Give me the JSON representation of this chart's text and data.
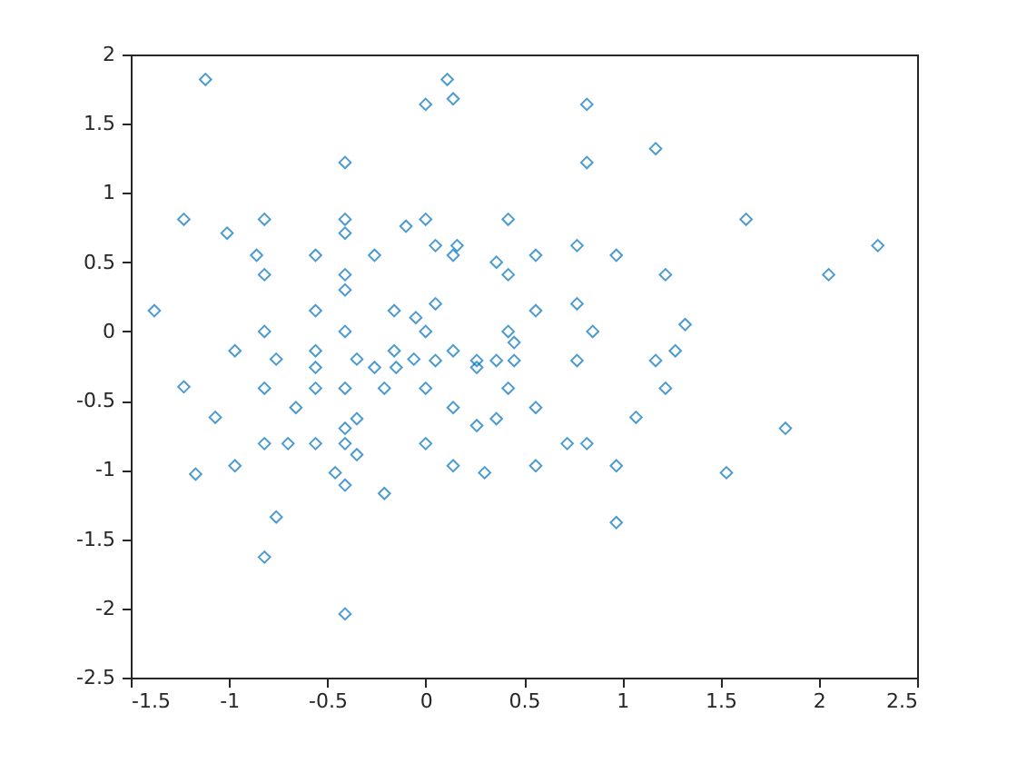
{
  "chart_data": {
    "type": "scatter",
    "marker": "diamond",
    "grid": false,
    "xlim": [
      -1.5,
      2.5
    ],
    "xticks": [
      -1.5,
      -1,
      -0.5,
      0,
      0.5,
      1,
      1.5,
      2,
      2.5
    ],
    "ylim": [
      -2.5,
      2
    ],
    "yticks": [
      -2.5,
      -2,
      -1.5,
      -1,
      -0.5,
      0,
      0.5,
      1,
      1.5,
      2
    ],
    "series": [
      {
        "color": "#0072bd",
        "x": [
          -1.38,
          -1.12,
          -1.23,
          -1.23,
          -1.17,
          -1.07,
          -1.01,
          -0.97,
          -0.97,
          -0.86,
          -0.82,
          -0.82,
          -0.82,
          -0.82,
          -0.82,
          -0.82,
          -0.76,
          -0.76,
          -0.7,
          -0.66,
          -0.56,
          -0.56,
          -0.56,
          -0.56,
          -0.56,
          -0.56,
          -0.41,
          -0.41,
          -0.41,
          -0.41,
          -0.41,
          -0.41,
          -0.41,
          -0.41,
          -0.41,
          -0.41,
          -0.41,
          -0.46,
          -0.35,
          -0.35,
          -0.35,
          -0.26,
          -0.26,
          -0.21,
          -0.21,
          -0.16,
          -0.16,
          -0.15,
          -0.1,
          -0.05,
          -0.06,
          0,
          0,
          0,
          0,
          0,
          0.11,
          0.14,
          0.05,
          0.05,
          0.05,
          0.14,
          0.16,
          0.14,
          0.14,
          0.14,
          0.26,
          0.26,
          0.26,
          0.3,
          0.36,
          0.36,
          0.36,
          0.42,
          0.42,
          0.42,
          0.42,
          0.45,
          0.45,
          0.56,
          0.56,
          0.56,
          0.56,
          0.72,
          0.77,
          0.77,
          0.77,
          0.82,
          0.82,
          0.85,
          0.82,
          0.97,
          0.97,
          0.97,
          1.07,
          1.17,
          1.17,
          1.22,
          1.22,
          1.27,
          1.32,
          1.53,
          1.63,
          1.83,
          2.05,
          2.3
        ],
        "values": [
          0.15,
          1.82,
          0.81,
          -0.4,
          -1.03,
          -0.62,
          0.71,
          -0.14,
          -0.97,
          0.55,
          0.81,
          0.41,
          0,
          -0.41,
          -0.81,
          -1.63,
          -1.34,
          -0.2,
          -0.81,
          -0.55,
          0.55,
          0.15,
          -0.14,
          -0.26,
          -0.41,
          -0.81,
          1.22,
          0.81,
          0.71,
          0.41,
          0.3,
          0,
          -0.41,
          -0.7,
          -0.81,
          -1.11,
          -2.04,
          -1.02,
          -0.63,
          -0.2,
          -0.89,
          0.55,
          -0.26,
          -1.17,
          -0.41,
          0.15,
          -0.14,
          -0.26,
          0.76,
          0.1,
          -0.2,
          0.81,
          0,
          -0.41,
          -0.81,
          1.64,
          1.82,
          1.68,
          0.62,
          0.2,
          -0.21,
          0.55,
          0.62,
          -0.14,
          -0.55,
          -0.97,
          -0.21,
          -0.26,
          -0.68,
          -1.02,
          0.5,
          -0.21,
          -0.63,
          0.41,
          0.81,
          0,
          -0.41,
          -0.08,
          -0.21,
          0.55,
          0.15,
          -0.55,
          -0.97,
          -0.81,
          0.62,
          0.2,
          -0.21,
          1.64,
          1.22,
          0,
          -0.81,
          0.55,
          -0.97,
          -1.38,
          -0.62,
          1.32,
          -0.21,
          0.41,
          -0.41,
          -0.14,
          0.05,
          -1.02,
          0.81,
          -0.7,
          0.41,
          0.62
        ]
      }
    ]
  }
}
